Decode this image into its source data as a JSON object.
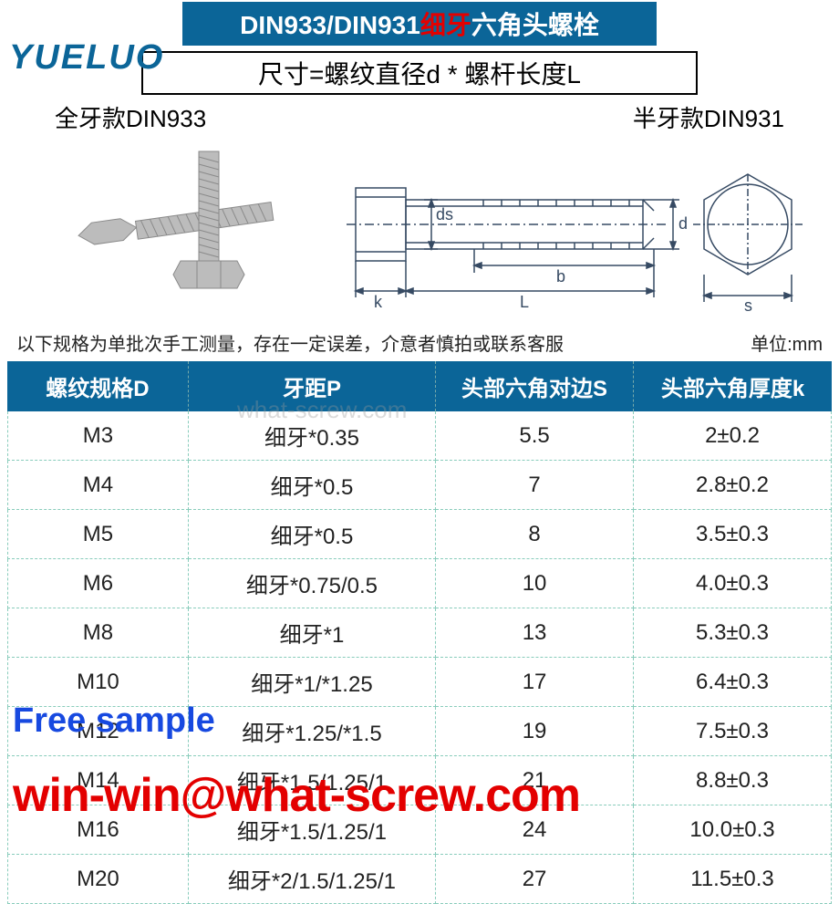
{
  "header": {
    "prefix": "DIN933/DIN931",
    "red": "细牙",
    "suffix": "六角头螺栓",
    "bg": "#0b6598",
    "red_color": "#e30000",
    "subtitle": "尺寸=螺纹直径d * 螺杆长度L"
  },
  "logo": "YUELUO",
  "variant_labels": {
    "full": "全牙款DIN933",
    "half": "半牙款DIN931"
  },
  "diagram_labels": {
    "ds": "ds",
    "d": "d",
    "b": "b",
    "k": "k",
    "L": "L",
    "s": "s"
  },
  "note": {
    "left": "以下规格为单批次手工测量，存在一定误差，介意者慎拍或联系客服",
    "right": "单位:mm"
  },
  "table": {
    "header_bg": "#0b6598",
    "border_color": "#8cb",
    "columns": [
      "螺纹规格D",
      "牙距P",
      "头部六角对边S",
      "头部六角厚度k"
    ],
    "rows": [
      [
        "M3",
        "细牙*0.35",
        "5.5",
        "2±0.2"
      ],
      [
        "M4",
        "细牙*0.5",
        "7",
        "2.8±0.2"
      ],
      [
        "M5",
        "细牙*0.5",
        "8",
        "3.5±0.3"
      ],
      [
        "M6",
        "细牙*0.75/0.5",
        "10",
        "4.0±0.3"
      ],
      [
        "M8",
        "细牙*1",
        "13",
        "5.3±0.3"
      ],
      [
        "M10",
        "细牙*1/*1.25",
        "17",
        "6.4±0.3"
      ],
      [
        "M12",
        "细牙*1.25/*1.5",
        "19",
        "7.5±0.3"
      ],
      [
        "M14",
        "细牙*1.5/1.25/1",
        "21",
        "8.8±0.3"
      ],
      [
        "M16",
        "细牙*1.5/1.25/1",
        "24",
        "10.0±0.3"
      ],
      [
        "M20",
        "细牙*2/1.5/1.25/1",
        "27",
        "11.5±0.3"
      ]
    ]
  },
  "watermarks": {
    "faint": "what-screw.com",
    "sample": "Free sample",
    "email": "win-win@what-screw.com",
    "sample_color": "#1749e0",
    "email_color": "#e30000"
  },
  "colors": {
    "bolt_fill": "#bcbcbc",
    "bolt_shadow": "#8a8a8a",
    "line": "#364a63",
    "hex_fill": "#fff"
  }
}
